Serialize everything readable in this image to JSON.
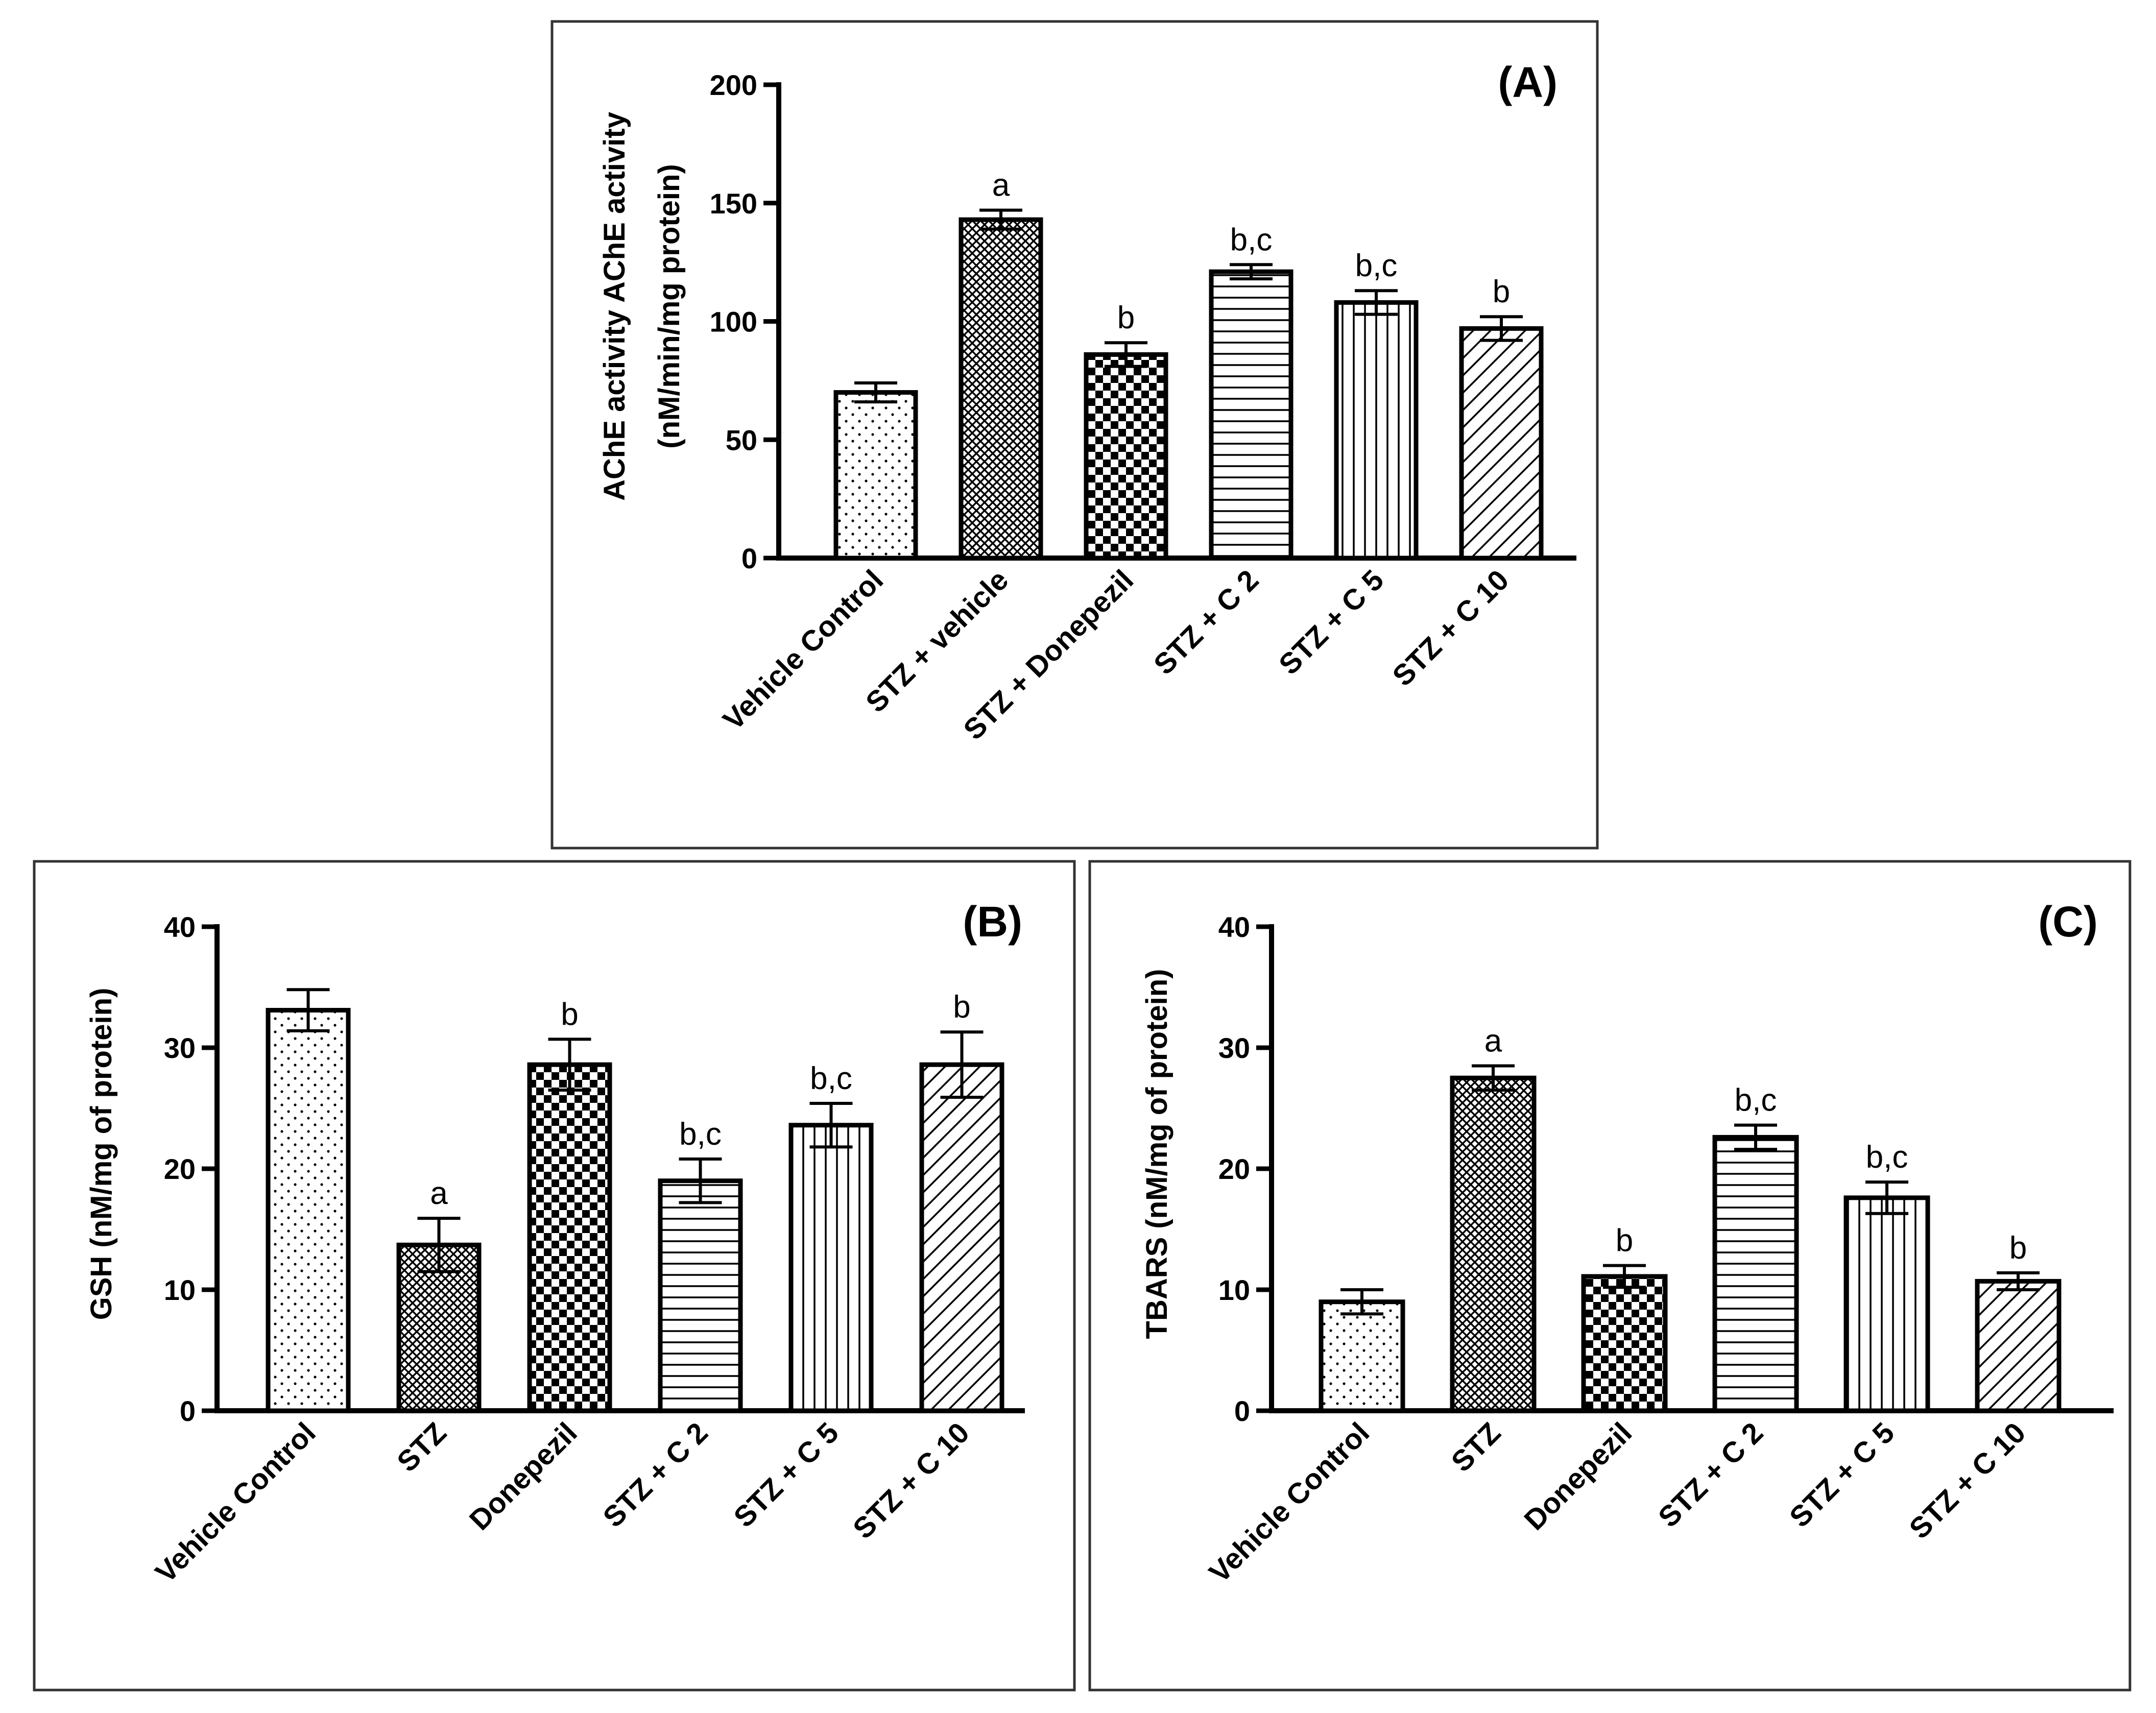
{
  "colors": {
    "ink": "#000000",
    "border": "#333333",
    "background": "#ffffff"
  },
  "pattern_names": [
    "dots",
    "crosshatch",
    "checkerboard",
    "horizontal-lines",
    "vertical-lines",
    "diagonal-lines"
  ],
  "chart_data": [
    {
      "type": "bar",
      "panel_label": "(A)",
      "ylabel_lines": [
        "AChE activity AChE activity",
        "(nM/min/mg protein)"
      ],
      "categories": [
        "Vehicle Control",
        "STZ + vehicle",
        "STZ + Donepezil",
        "STZ + C 2",
        "STZ + C 5",
        "STZ + C 10"
      ],
      "values": [
        70,
        143,
        86,
        121,
        108,
        97
      ],
      "errors": [
        4,
        4,
        5,
        3,
        5,
        5
      ],
      "annotations": [
        "",
        "a",
        "b",
        "b,c",
        "b,c",
        "b"
      ],
      "ylim": [
        0,
        200
      ],
      "yticks": [
        0,
        50,
        100,
        150,
        200
      ],
      "grid": false
    },
    {
      "type": "bar",
      "panel_label": "(B)",
      "ylabel_lines": [
        "GSH (nM/mg of protein)"
      ],
      "categories": [
        "Vehicle Control",
        "STZ",
        "Donepezil",
        "STZ + C 2",
        "STZ + C 5",
        "STZ + C 10"
      ],
      "values": [
        33.1,
        13.7,
        28.6,
        19.0,
        23.6,
        28.6
      ],
      "errors": [
        1.7,
        2.2,
        2.1,
        1.8,
        1.8,
        2.7
      ],
      "annotations": [
        "",
        "a",
        "b",
        "b,c",
        "b,c",
        "b"
      ],
      "ylim": [
        0,
        40
      ],
      "yticks": [
        0,
        10,
        20,
        30,
        40
      ],
      "grid": false
    },
    {
      "type": "bar",
      "panel_label": "(C)",
      "ylabel_lines": [
        "TBARS (nM/mg of protein)"
      ],
      "categories": [
        "Vehicle Control",
        "STZ",
        "Donepezil",
        "STZ + C 2",
        "STZ + C 5",
        "STZ + C 10"
      ],
      "values": [
        9.0,
        27.5,
        11.1,
        22.6,
        17.6,
        10.7
      ],
      "errors": [
        1.0,
        1.0,
        0.9,
        1.0,
        1.3,
        0.7
      ],
      "annotations": [
        "",
        "a",
        "b",
        "b,c",
        "b,c",
        "b"
      ],
      "ylim": [
        0,
        40
      ],
      "yticks": [
        0,
        10,
        20,
        30,
        40
      ],
      "grid": false
    }
  ]
}
